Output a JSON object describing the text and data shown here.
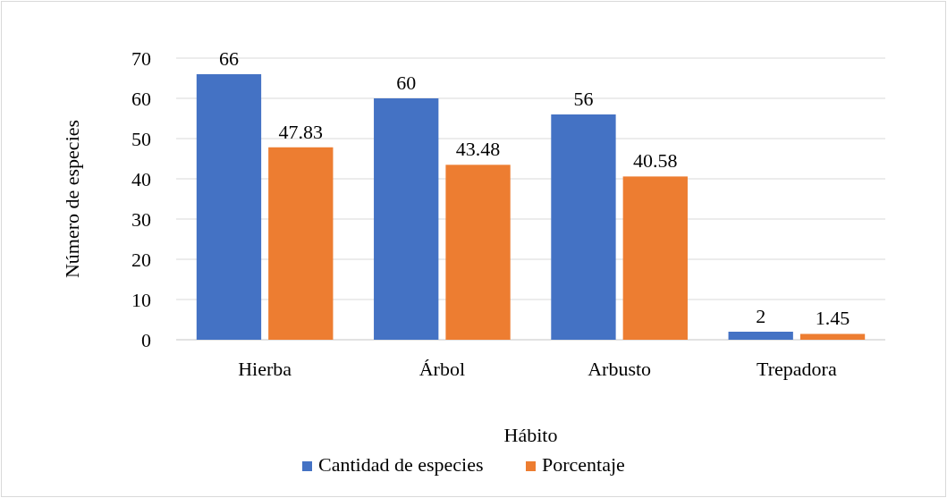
{
  "chart_data": {
    "type": "bar",
    "xlabel": "Hábito",
    "ylabel": "Número de especies",
    "categories": [
      "Hierba",
      "Árbol",
      "Arbusto",
      "Trepadora"
    ],
    "series": [
      {
        "name": "Cantidad de especies",
        "color": "#4472c4",
        "values": [
          66,
          60,
          56,
          2
        ]
      },
      {
        "name": "Porcentaje",
        "color": "#ed7d31",
        "values": [
          47.83,
          43.48,
          40.58,
          1.45
        ]
      }
    ],
    "ylim": [
      0,
      70
    ],
    "yticks": [
      0,
      10,
      20,
      30,
      40,
      50,
      60,
      70
    ],
    "grid": "y",
    "legend": "bottom",
    "data_labels": true
  }
}
